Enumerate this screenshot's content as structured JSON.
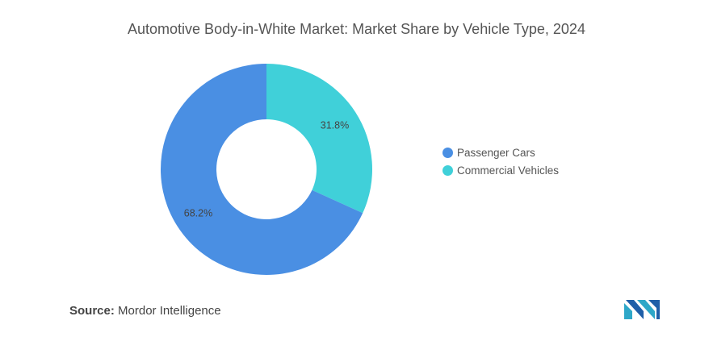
{
  "chart_data": {
    "type": "pie",
    "variant": "donut",
    "title": "Automotive Body-in-White Market: Market Share by Vehicle Type, 2024",
    "categories": [
      "Passenger Cars",
      "Commercial Vehicles"
    ],
    "values": [
      68.2,
      31.8
    ],
    "data_labels": [
      "68.2%",
      "31.8%"
    ],
    "colors": [
      "#4a8fe3",
      "#40d0d9"
    ],
    "legend_position": "right"
  },
  "source": {
    "label": "Source:",
    "text": "Mordor Intelligence"
  },
  "logo": {
    "icon": "mordor-intelligence-logo-icon",
    "colors": [
      "#2ea7c8",
      "#1f5fa8"
    ]
  }
}
